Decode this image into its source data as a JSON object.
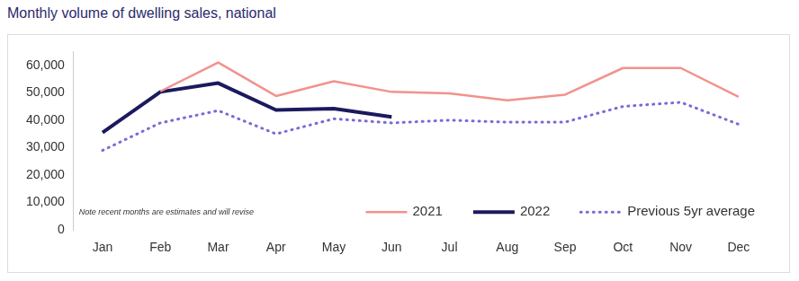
{
  "chart_data": {
    "type": "line",
    "title": "Monthly volume of dwelling sales, national",
    "annotations": [
      "Note recent months are estimates and will revise"
    ],
    "categories": [
      "Jan",
      "Feb",
      "Mar",
      "Apr",
      "May",
      "Jun",
      "Jul",
      "Aug",
      "Sep",
      "Oct",
      "Nov",
      "Dec"
    ],
    "series": [
      {
        "name": "2021",
        "color": "#f2928c",
        "line_style": "solid",
        "values": [
          null,
          50500,
          61000,
          48800,
          54200,
          50300,
          49800,
          47200,
          49300,
          59000,
          59000,
          48500
        ]
      },
      {
        "name": "2022",
        "color": "#1b1a5e",
        "line_style": "solid",
        "values": [
          35500,
          50300,
          53500,
          43700,
          44200,
          41200,
          null,
          null,
          null,
          null,
          null,
          null
        ]
      },
      {
        "name": "Previous 5yr average",
        "color": "#7a68d8",
        "line_style": "dotted",
        "values": [
          29000,
          39000,
          43500,
          35000,
          40500,
          39000,
          40000,
          39300,
          39300,
          45000,
          46500,
          38500
        ]
      }
    ],
    "ylim": [
      0,
      65000
    ],
    "yticks": [
      0,
      {
        "value": 10000,
        "label": "10,000"
      },
      {
        "value": 20000,
        "label": "20,000"
      },
      {
        "value": 30000,
        "label": "30,000"
      },
      {
        "value": 40000,
        "label": "40,000"
      },
      {
        "value": 50000,
        "label": "50,000"
      },
      {
        "value": 60000,
        "label": "60,000"
      }
    ],
    "grid": false,
    "legend": "lower right"
  }
}
